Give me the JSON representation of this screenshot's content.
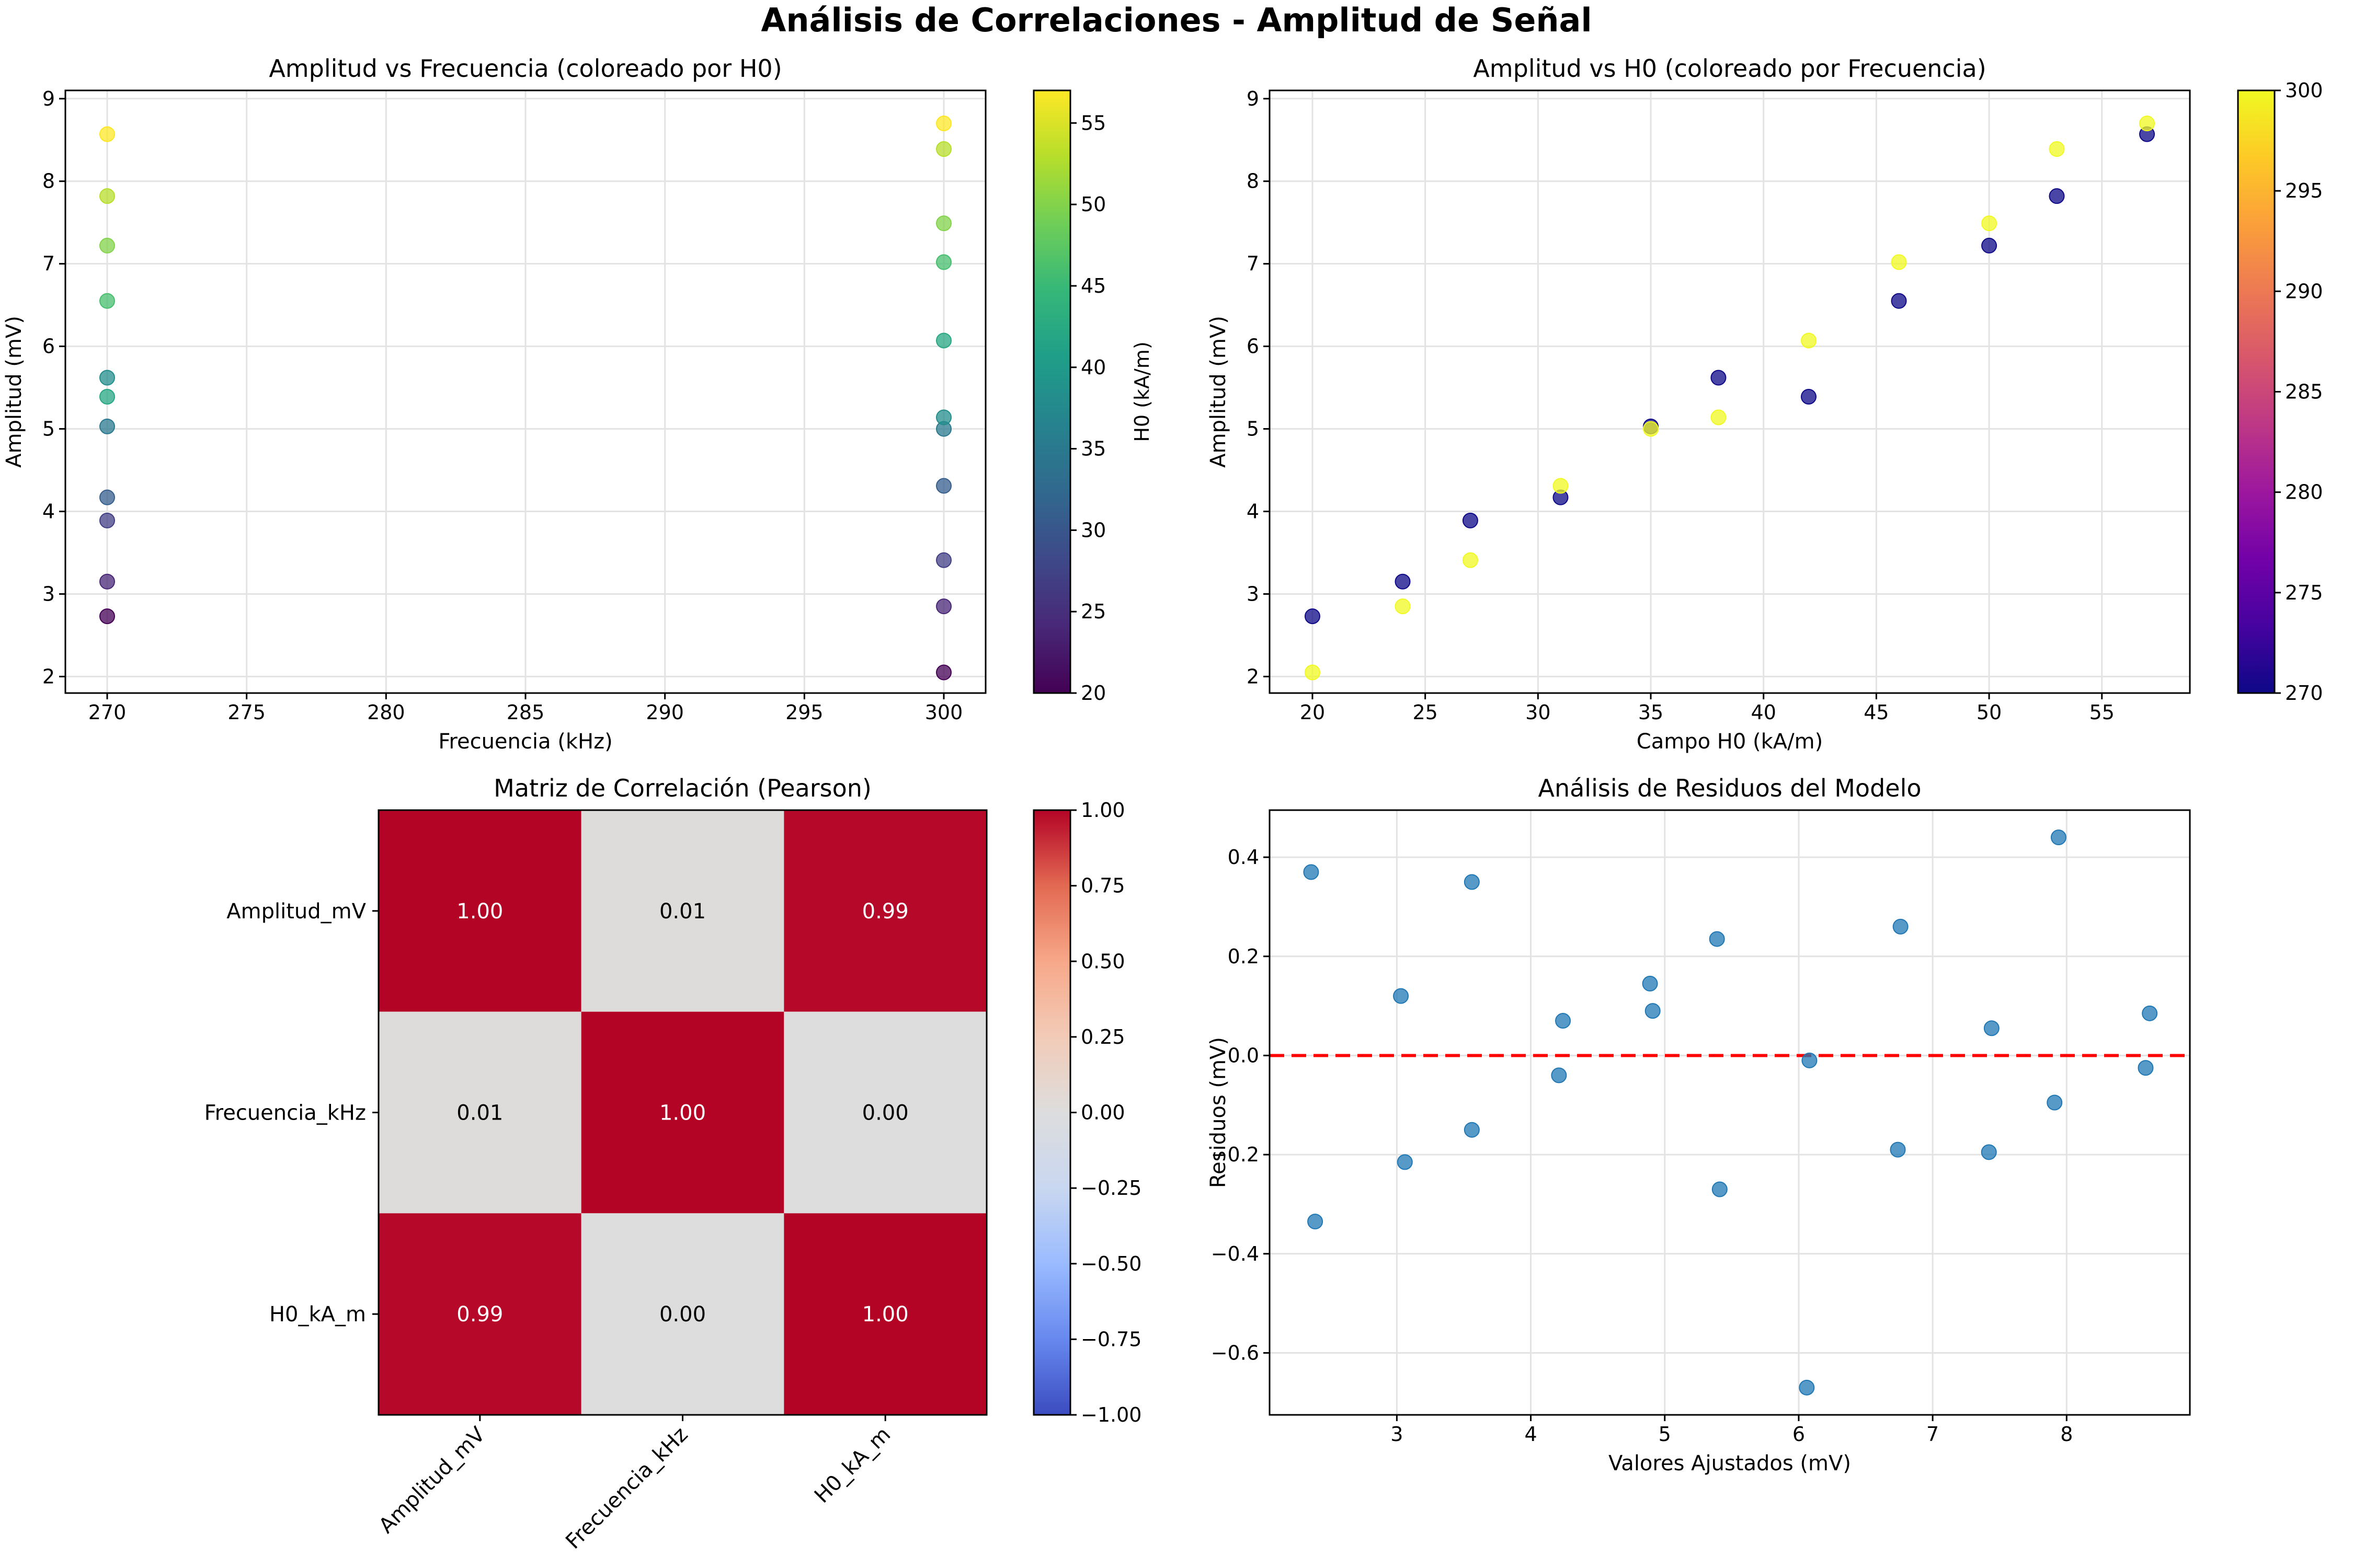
{
  "suptitle": "Análisis de Correlaciones - Amplitud de Señal",
  "chart_data": [
    {
      "type": "scatter",
      "title": "Amplitud vs Frecuencia (coloreado por H0)",
      "xlabel": "Frecuencia (kHz)",
      "ylabel": "Amplitud (mV)",
      "xlim": [
        268.5,
        301.5
      ],
      "ylim": [
        1.8,
        9.1
      ],
      "xticks": [
        270,
        275,
        280,
        285,
        290,
        295,
        300
      ],
      "yticks": [
        2,
        3,
        4,
        5,
        6,
        7,
        8,
        9
      ],
      "grid": true,
      "colormap": "viridis",
      "colorbar": {
        "label": "H0 (kA/m)",
        "range": [
          20,
          57
        ],
        "ticks": [
          20,
          25,
          30,
          35,
          40,
          45,
          50,
          55
        ]
      },
      "points": [
        {
          "x": 270,
          "y": 2.73,
          "c": 20
        },
        {
          "x": 270,
          "y": 3.15,
          "c": 24
        },
        {
          "x": 270,
          "y": 3.89,
          "c": 27
        },
        {
          "x": 270,
          "y": 4.17,
          "c": 31
        },
        {
          "x": 270,
          "y": 5.03,
          "c": 35
        },
        {
          "x": 270,
          "y": 5.62,
          "c": 38
        },
        {
          "x": 270,
          "y": 5.39,
          "c": 42
        },
        {
          "x": 270,
          "y": 6.55,
          "c": 46
        },
        {
          "x": 270,
          "y": 7.22,
          "c": 50
        },
        {
          "x": 270,
          "y": 7.82,
          "c": 53
        },
        {
          "x": 270,
          "y": 8.57,
          "c": 57
        },
        {
          "x": 300,
          "y": 2.05,
          "c": 20
        },
        {
          "x": 300,
          "y": 2.85,
          "c": 24
        },
        {
          "x": 300,
          "y": 3.41,
          "c": 27
        },
        {
          "x": 300,
          "y": 4.31,
          "c": 31
        },
        {
          "x": 300,
          "y": 5.0,
          "c": 35
        },
        {
          "x": 300,
          "y": 5.14,
          "c": 38
        },
        {
          "x": 300,
          "y": 6.07,
          "c": 42
        },
        {
          "x": 300,
          "y": 7.02,
          "c": 46
        },
        {
          "x": 300,
          "y": 7.49,
          "c": 50
        },
        {
          "x": 300,
          "y": 8.39,
          "c": 53
        },
        {
          "x": 300,
          "y": 8.7,
          "c": 57
        }
      ]
    },
    {
      "type": "scatter",
      "title": "Amplitud vs H0 (coloreado por Frecuencia)",
      "xlabel": "Campo H0 (kA/m)",
      "ylabel": "Amplitud (mV)",
      "xlim": [
        18.1,
        58.9
      ],
      "ylim": [
        1.8,
        9.1
      ],
      "xticks": [
        20,
        25,
        30,
        35,
        40,
        45,
        50,
        55
      ],
      "yticks": [
        2,
        3,
        4,
        5,
        6,
        7,
        8,
        9
      ],
      "grid": true,
      "colormap": "plasma",
      "colorbar": {
        "label": "Frecuencia (kHz)",
        "range": [
          270,
          300
        ],
        "ticks": [
          270,
          275,
          280,
          285,
          290,
          295,
          300
        ]
      },
      "points": [
        {
          "x": 20,
          "y": 2.73,
          "c": 270
        },
        {
          "x": 24,
          "y": 3.15,
          "c": 270
        },
        {
          "x": 27,
          "y": 3.89,
          "c": 270
        },
        {
          "x": 31,
          "y": 4.17,
          "c": 270
        },
        {
          "x": 35,
          "y": 5.03,
          "c": 270
        },
        {
          "x": 38,
          "y": 5.62,
          "c": 270
        },
        {
          "x": 42,
          "y": 5.39,
          "c": 270
        },
        {
          "x": 46,
          "y": 6.55,
          "c": 270
        },
        {
          "x": 50,
          "y": 7.22,
          "c": 270
        },
        {
          "x": 53,
          "y": 7.82,
          "c": 270
        },
        {
          "x": 57,
          "y": 8.57,
          "c": 270
        },
        {
          "x": 20,
          "y": 2.05,
          "c": 300
        },
        {
          "x": 24,
          "y": 2.85,
          "c": 300
        },
        {
          "x": 27,
          "y": 3.41,
          "c": 300
        },
        {
          "x": 31,
          "y": 4.31,
          "c": 300
        },
        {
          "x": 35,
          "y": 5.0,
          "c": 300
        },
        {
          "x": 38,
          "y": 5.14,
          "c": 300
        },
        {
          "x": 42,
          "y": 6.07,
          "c": 300
        },
        {
          "x": 46,
          "y": 7.02,
          "c": 300
        },
        {
          "x": 50,
          "y": 7.49,
          "c": 300
        },
        {
          "x": 53,
          "y": 8.39,
          "c": 300
        },
        {
          "x": 57,
          "y": 8.7,
          "c": 300
        }
      ]
    },
    {
      "type": "heatmap",
      "title": "Matriz de Correlación (Pearson)",
      "labels": [
        "Amplitud_mV",
        "Frecuencia_kHz",
        "H0_kA_m"
      ],
      "matrix": [
        [
          1.0,
          0.01,
          0.99
        ],
        [
          0.01,
          1.0,
          0.0
        ],
        [
          0.99,
          0.0,
          1.0
        ]
      ],
      "colormap": "coolwarm",
      "colorbar": {
        "range": [
          -1,
          1
        ],
        "ticks": [
          "1.00",
          "0.75",
          "0.50",
          "0.25",
          "0.00",
          "-0.25",
          "-0.50",
          "-0.75",
          "-1.00"
        ]
      }
    },
    {
      "type": "scatter",
      "title": "Análisis de Residuos del Modelo",
      "xlabel": "Valores Ajustados (mV)",
      "ylabel": "Residuos (mV)",
      "xlim": [
        2.05,
        8.92
      ],
      "ylim": [
        -0.725,
        0.495
      ],
      "xticks": [
        3,
        4,
        5,
        6,
        7,
        8
      ],
      "yticks": [
        -0.6,
        -0.4,
        -0.2,
        0.0,
        0.2,
        0.4
      ],
      "grid": true,
      "reference_line": {
        "y": 0.0,
        "style": "dashed",
        "color": "#ff0000"
      },
      "color": "#1f77b4",
      "points": [
        {
          "x": 2.36,
          "y": 0.37
        },
        {
          "x": 2.39,
          "y": -0.335
        },
        {
          "x": 3.03,
          "y": 0.12
        },
        {
          "x": 3.06,
          "y": -0.215
        },
        {
          "x": 3.56,
          "y": 0.35
        },
        {
          "x": 3.56,
          "y": -0.15
        },
        {
          "x": 4.21,
          "y": -0.04
        },
        {
          "x": 4.24,
          "y": 0.07
        },
        {
          "x": 4.89,
          "y": 0.145
        },
        {
          "x": 4.91,
          "y": 0.09
        },
        {
          "x": 5.39,
          "y": 0.235
        },
        {
          "x": 5.41,
          "y": -0.27
        },
        {
          "x": 6.06,
          "y": -0.67
        },
        {
          "x": 6.08,
          "y": -0.01
        },
        {
          "x": 6.74,
          "y": -0.19
        },
        {
          "x": 6.76,
          "y": 0.26
        },
        {
          "x": 7.42,
          "y": -0.195
        },
        {
          "x": 7.44,
          "y": 0.055
        },
        {
          "x": 7.91,
          "y": -0.095
        },
        {
          "x": 7.94,
          "y": 0.44
        },
        {
          "x": 8.59,
          "y": -0.025
        },
        {
          "x": 8.62,
          "y": 0.085
        }
      ]
    }
  ]
}
